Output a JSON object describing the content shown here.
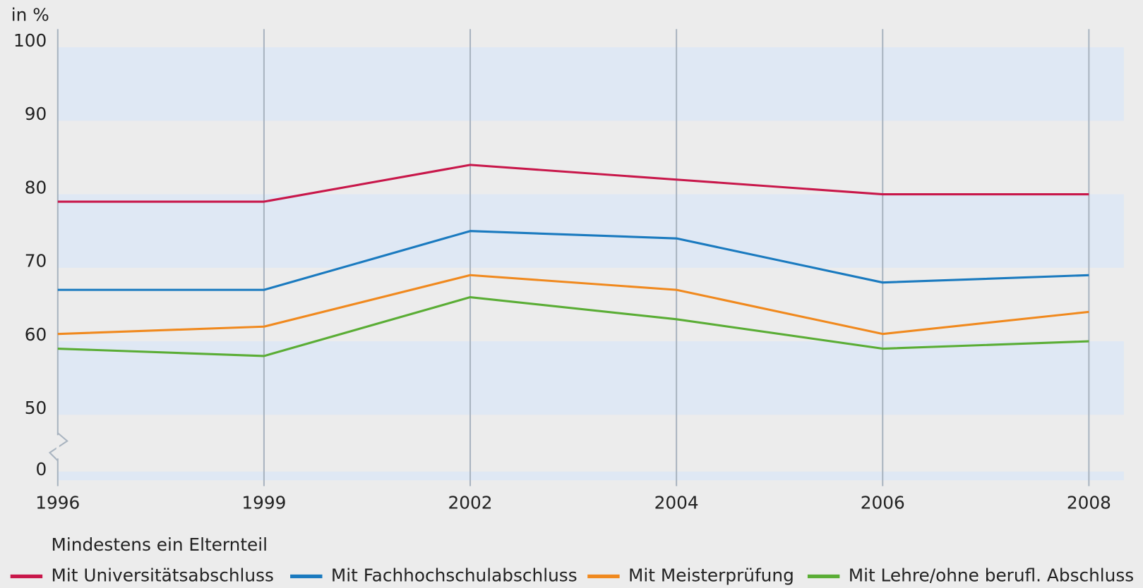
{
  "chart_data": {
    "type": "line",
    "y_axis_label": "in %",
    "legend_title": "Mindestens ein Elternteil",
    "categories": [
      "1996",
      "1999",
      "2002",
      "2004",
      "2006",
      "2008"
    ],
    "series": [
      {
        "name": "Mit Universitätsabschluss",
        "color": "#c8174a",
        "values": [
          79,
          79,
          84,
          82,
          80,
          80
        ]
      },
      {
        "name": "Mit Fachhochschulabschluss",
        "color": "#1a7abf",
        "values": [
          67,
          67,
          75,
          74,
          68,
          69
        ]
      },
      {
        "name": "Mit Meisterprüfung",
        "color": "#f0891e",
        "values": [
          61,
          62,
          69,
          67,
          61,
          64
        ]
      },
      {
        "name": "Mit Lehre/ohne berufl. Abschluss",
        "color": "#5aad35",
        "values": [
          59,
          58,
          66,
          63,
          59,
          60
        ]
      }
    ],
    "ylim": [
      0,
      100
    ],
    "yticks": [
      0,
      50,
      60,
      70,
      80,
      90,
      100
    ],
    "axis_break": {
      "from": 0,
      "to": 50
    },
    "grid": true,
    "legend": "bottom"
  }
}
